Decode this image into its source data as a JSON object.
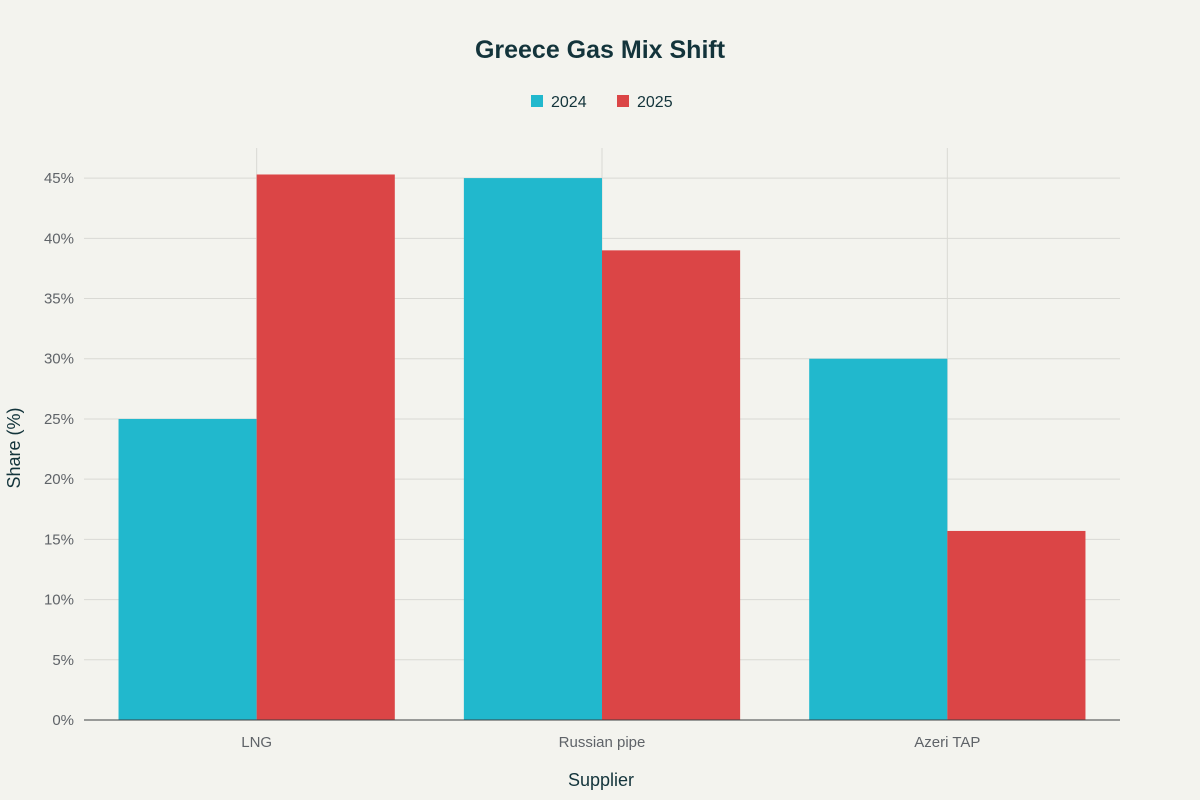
{
  "chart_data": {
    "type": "bar",
    "title": "Greece Gas Mix Shift",
    "xlabel": "Supplier",
    "ylabel": "Share (%)",
    "categories": [
      "LNG",
      "Russian pipe",
      "Azeri TAP"
    ],
    "series": [
      {
        "name": "2024",
        "values": [
          25,
          45,
          30
        ],
        "color": "#21b8cd"
      },
      {
        "name": "2025",
        "values": [
          45.3,
          39,
          15.7
        ],
        "color": "#db4546"
      }
    ],
    "ylim": [
      0,
      47.5
    ],
    "yticks": [
      0,
      5,
      10,
      15,
      20,
      25,
      30,
      35,
      40,
      45
    ],
    "ytick_labels": [
      "0%",
      "5%",
      "10%",
      "15%",
      "20%",
      "25%",
      "30%",
      "35%",
      "40%",
      "45%"
    ],
    "grid": true,
    "legend_position": "top-center"
  }
}
